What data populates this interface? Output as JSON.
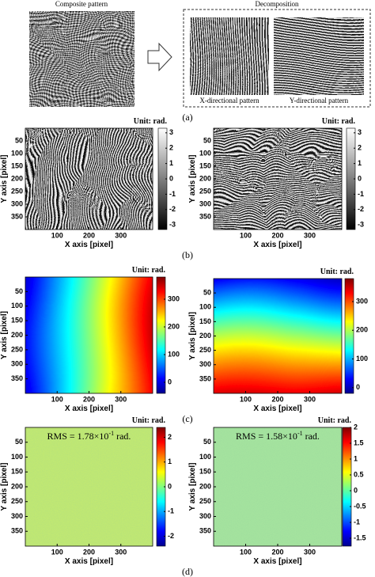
{
  "figure_a": {
    "left_title": "Composite pattern",
    "right_title": "Decomposition",
    "x_caption": "X-directional pattern",
    "y_caption": "Y-directional pattern",
    "label": "(a)"
  },
  "panels": [
    {
      "label": "(b)",
      "plots": [
        {
          "unit": "Unit: rad.",
          "xlabel": "X axis [pixel]",
          "ylabel": "Y axis [pixel]",
          "xlim": [
            0,
            400
          ],
          "xticks": [
            100,
            200,
            300
          ],
          "ylim": [
            0,
            400
          ],
          "yticks": [
            50,
            100,
            150,
            200,
            250,
            300,
            350
          ],
          "clim": [
            -3.3,
            3.3
          ],
          "cticks": [
            -3,
            -2,
            -1,
            0,
            1,
            2,
            3
          ]
        },
        {
          "unit": "Unit: rad.",
          "xlabel": "X axis [pixel]",
          "ylabel": "Y axis [pixel]",
          "xlim": [
            0,
            400
          ],
          "xticks": [
            100,
            200,
            300
          ],
          "ylim": [
            0,
            400
          ],
          "yticks": [
            50,
            100,
            150,
            200,
            250,
            300,
            350
          ],
          "clim": [
            -3.3,
            3.3
          ],
          "cticks": [
            -3,
            -2,
            -1,
            0,
            1,
            2,
            3
          ]
        }
      ]
    },
    {
      "label": "(c)",
      "plots": [
        {
          "unit": "Unit: rad.",
          "xlabel": "X axis [pixel]",
          "ylabel": "Y axis [pixel]",
          "xlim": [
            0,
            400
          ],
          "xticks": [
            100,
            200,
            300
          ],
          "ylim": [
            0,
            400
          ],
          "yticks": [
            50,
            100,
            150,
            200,
            250,
            300,
            350
          ],
          "clim": [
            -40,
            380
          ],
          "cticks": [
            0,
            100,
            200,
            300
          ]
        },
        {
          "unit": "Unit: rad.",
          "xlabel": "X axis [pixel]",
          "ylabel": "Y axis [pixel]",
          "xlim": [
            0,
            400
          ],
          "xticks": [
            100,
            200,
            300
          ],
          "ylim": [
            0,
            400
          ],
          "yticks": [
            50,
            100,
            150,
            200,
            250,
            300,
            350
          ],
          "clim": [
            -20,
            380
          ],
          "cticks": [
            0,
            100,
            200,
            300
          ]
        }
      ]
    },
    {
      "label": "(d)",
      "plots": [
        {
          "unit": "Unit: rad.",
          "xlabel": "X axis [pixel]",
          "ylabel": "Y axis [pixel]",
          "xlim": [
            0,
            400
          ],
          "xticks": [
            100,
            200,
            300
          ],
          "ylim": [
            0,
            400
          ],
          "yticks": [
            50,
            100,
            150,
            200,
            250,
            300,
            350
          ],
          "clim": [
            -2.4,
            2.4
          ],
          "cticks": [
            -2,
            -1,
            0,
            1,
            2
          ],
          "rms": [
            "RMS = 1.78×10",
            "-1",
            "rad."
          ]
        },
        {
          "unit": "Unit: rad.",
          "xlabel": "X axis [pixel]",
          "ylabel": "Y axis [pixel]",
          "xlim": [
            0,
            400
          ],
          "xticks": [
            100,
            200,
            300
          ],
          "ylim": [
            0,
            400
          ],
          "yticks": [
            50,
            100,
            150,
            200,
            250,
            300,
            350
          ],
          "clim": [
            -1.75,
            2
          ],
          "cticks": [
            -1.5,
            -1,
            -0.5,
            0,
            0.5,
            1,
            1.5,
            2
          ],
          "rms": [
            "RMS = 1.58×10",
            "-1",
            "rad."
          ]
        }
      ]
    }
  ]
}
